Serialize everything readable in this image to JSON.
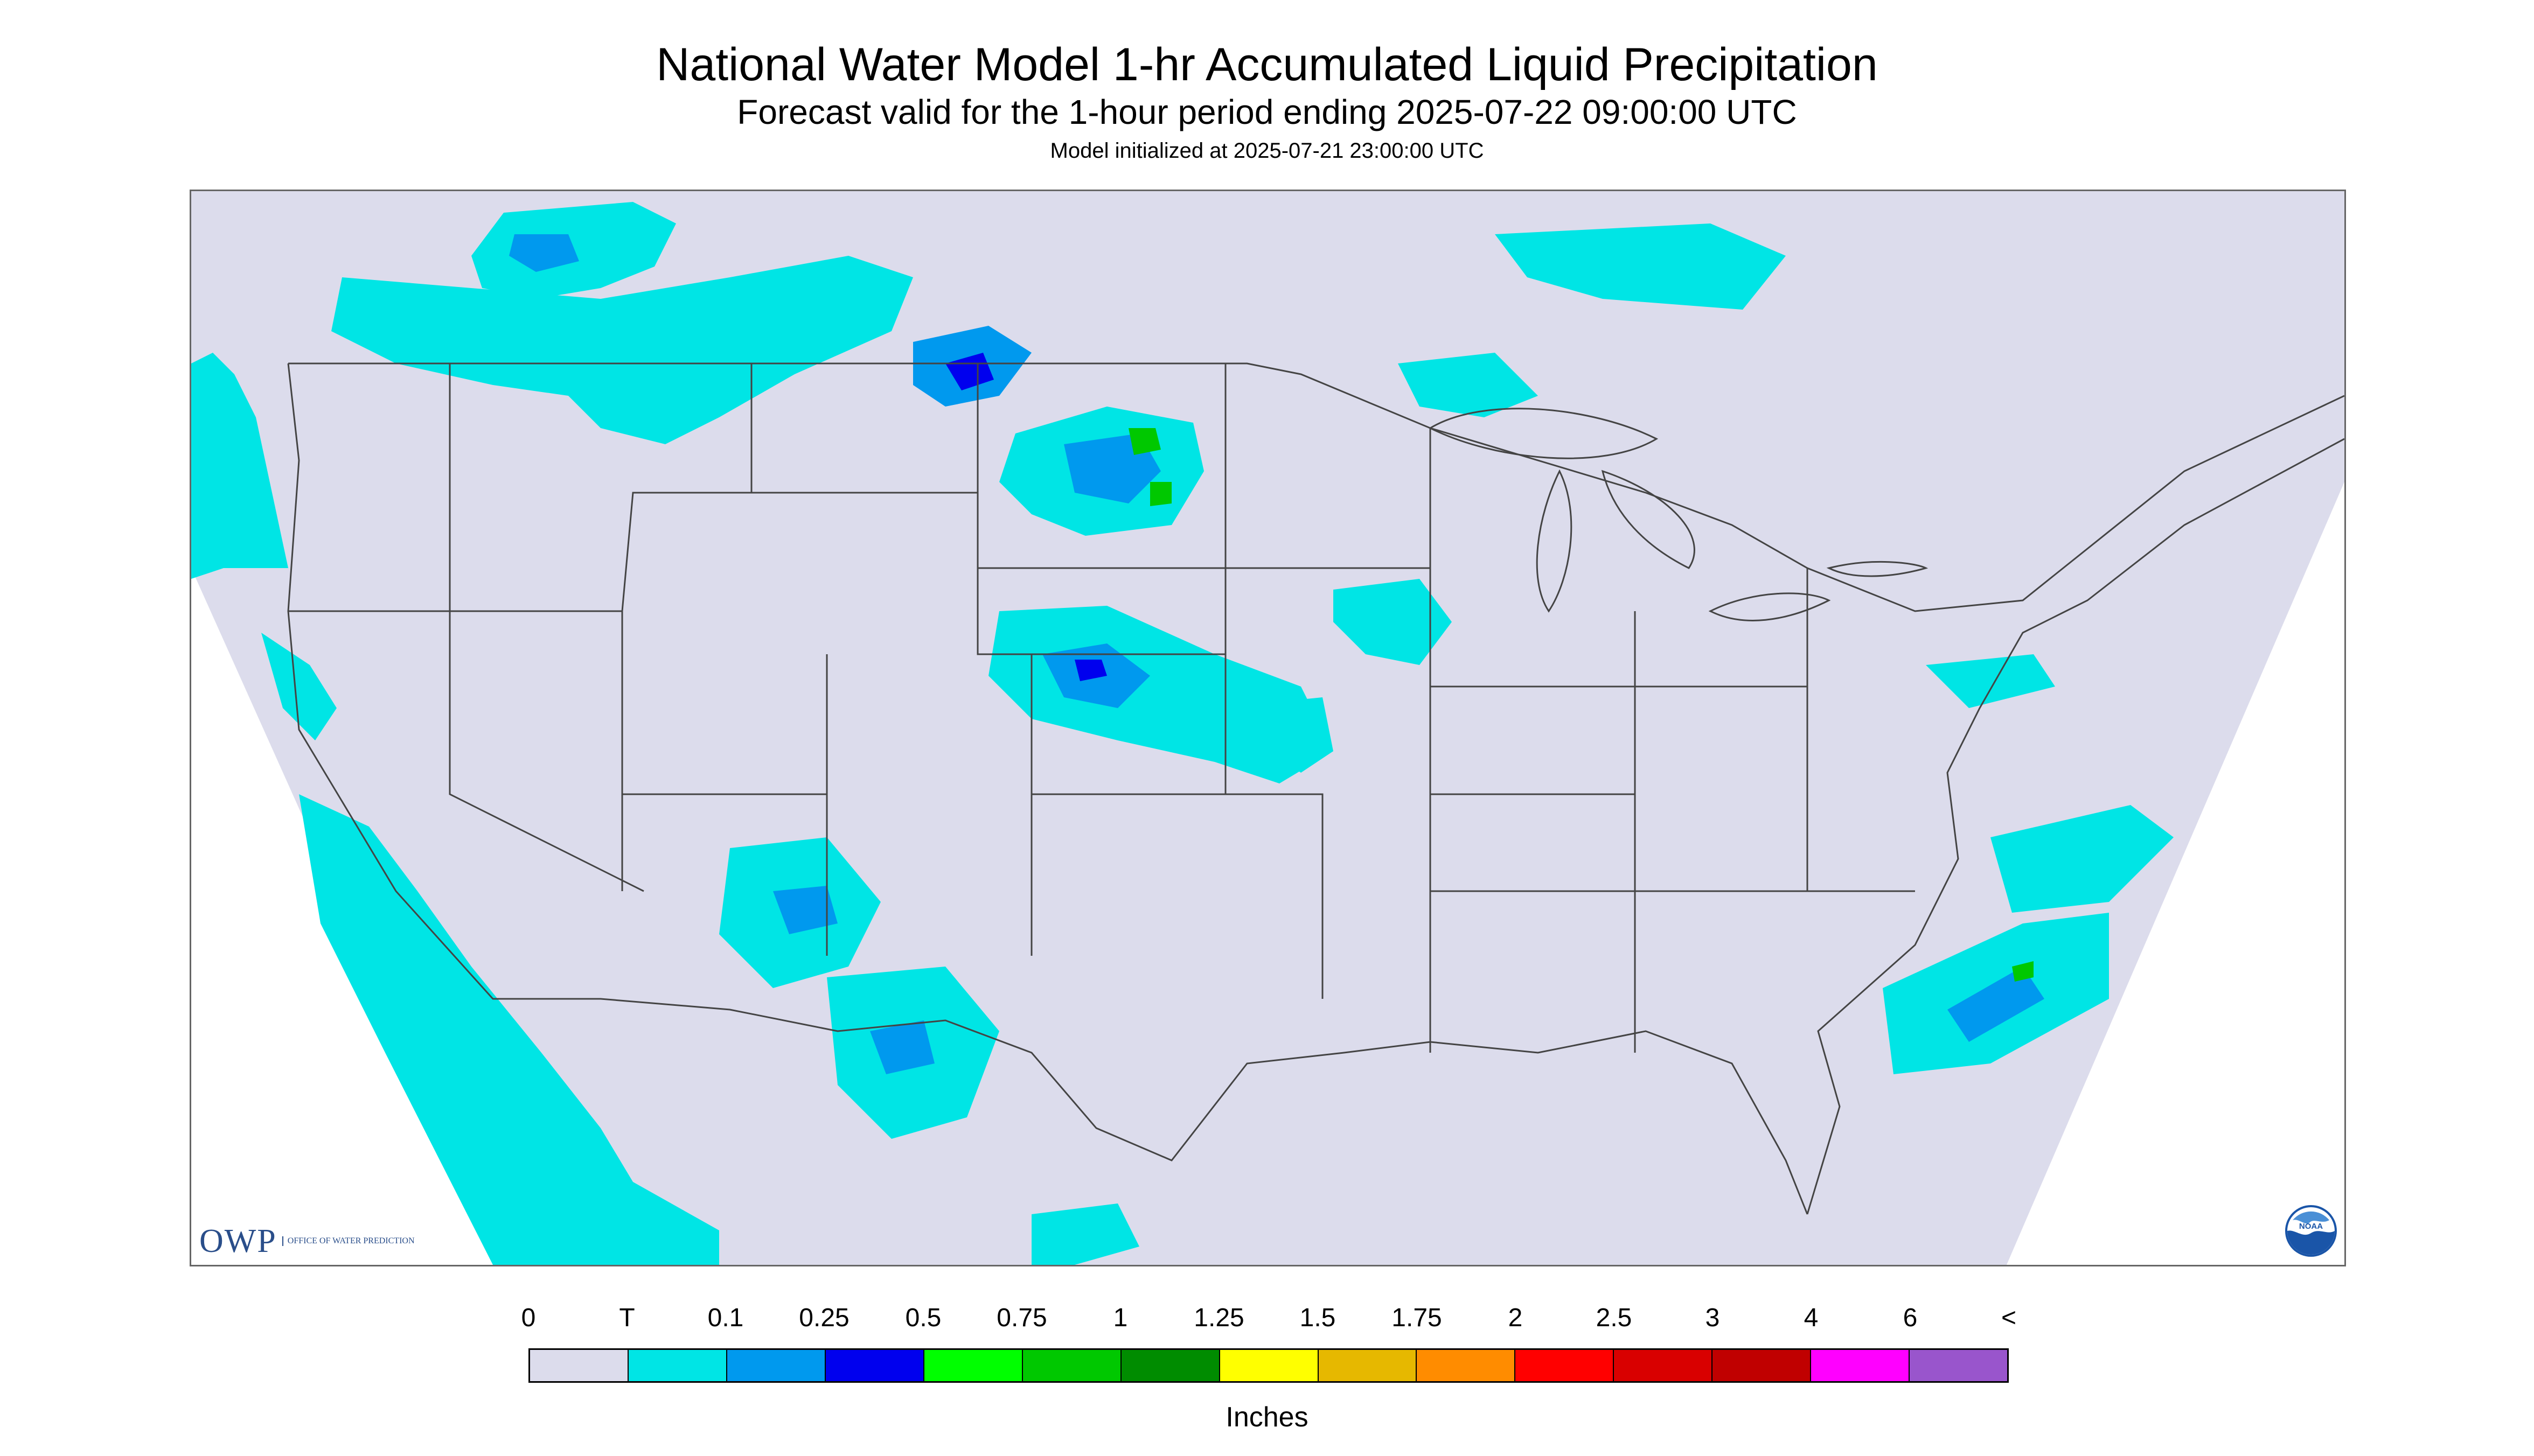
{
  "header": {
    "title": "National Water Model 1-hr Accumulated Liquid Precipitation",
    "subtitle": "Forecast valid for the 1-hour period ending 2025-07-22 09:00:00 UTC",
    "init": "Model initialized at 2025-07-21 23:00:00 UTC"
  },
  "logos": {
    "owp_text": "OWP",
    "owp_sub": "Office of Water Prediction",
    "noaa_text": "NOAA"
  },
  "legend": {
    "labels": [
      "0",
      "T",
      "0.1",
      "0.25",
      "0.5",
      "0.75",
      "1",
      "1.25",
      "1.5",
      "1.75",
      "2",
      "2.5",
      "3",
      "4",
      "6",
      "<"
    ],
    "colors": [
      "#dcdcec",
      "#00e5e5",
      "#0099ee",
      "#0000ee",
      "#00ff00",
      "#00c800",
      "#008c00",
      "#ffff00",
      "#e6b800",
      "#ff8c00",
      "#ff0000",
      "#d90000",
      "#c00000",
      "#ff00ff",
      "#9955cc"
    ],
    "units": "Inches"
  },
  "map": {
    "background_color": "#dcdcec",
    "precip_colors": {
      "trace": "#00e5e5",
      "light": "#0099ee",
      "moderate": "#0000ee",
      "heavy": "#00c800",
      "yellow": "#ffff00"
    }
  }
}
